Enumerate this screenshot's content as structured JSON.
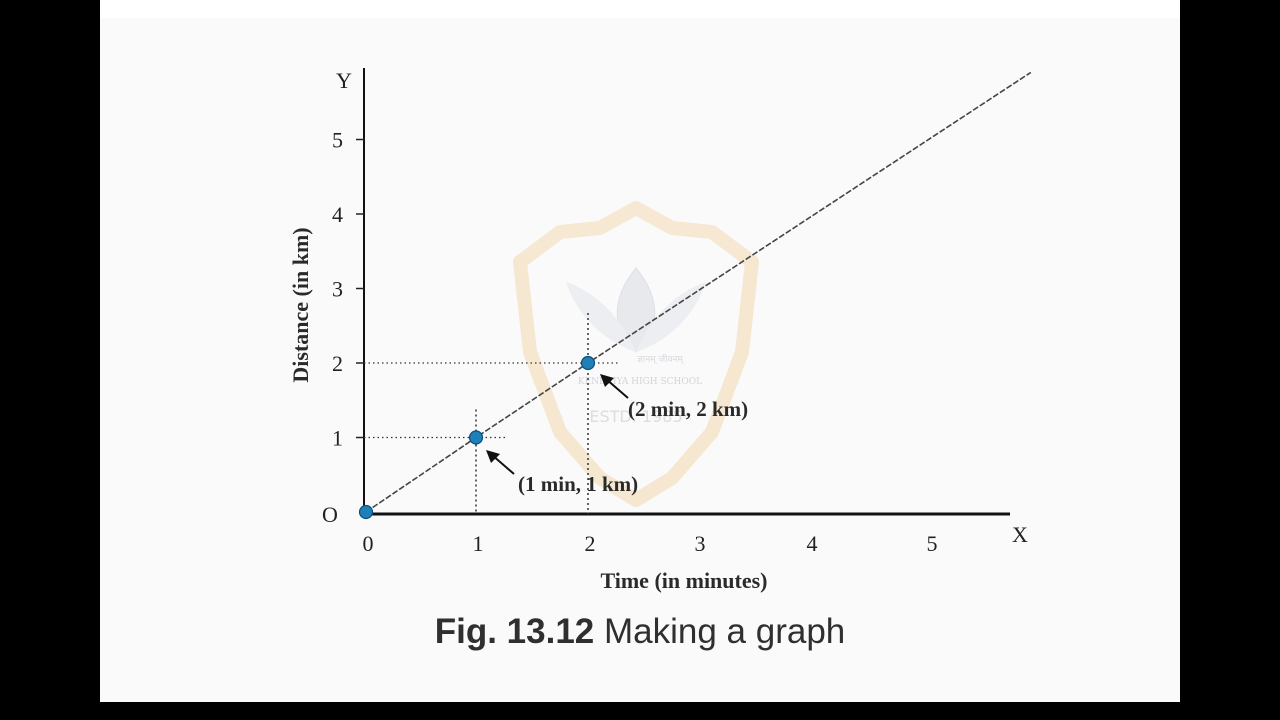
{
  "chart_data": {
    "type": "line",
    "title": "",
    "xlabel": "Time (in minutes)",
    "ylabel": "Distance (in km)",
    "x_axis_letter": "X",
    "y_axis_letter": "Y",
    "origin_label": "O",
    "x_ticks": [
      "0",
      "1",
      "2",
      "3",
      "4",
      "5"
    ],
    "y_ticks": [
      "1",
      "2",
      "3",
      "4",
      "5"
    ],
    "xlim": [
      0,
      5.7
    ],
    "ylim": [
      0,
      5.8
    ],
    "series": [
      {
        "x": [
          0,
          1,
          2,
          5.9
        ],
        "y": [
          0,
          1,
          2,
          5.9
        ]
      }
    ],
    "points": [
      {
        "x": 0,
        "y": 0
      },
      {
        "x": 1,
        "y": 1
      },
      {
        "x": 2,
        "y": 2
      }
    ],
    "annotations": [
      {
        "text": "(1 min, 1 km)",
        "x": 1,
        "y": 1
      },
      {
        "text": "(2 min, 2 km)",
        "x": 2,
        "y": 2
      }
    ],
    "marker_color": "#1f7fb8",
    "line_color": "#444444"
  },
  "caption": {
    "figure_number": "Fig. 13.12",
    "text": "Making a graph"
  },
  "watermark": {
    "text_top": "ज्ञानम् जीवनम्",
    "text_middle": "KENDRIYA HIGH SCHOOL",
    "text_bottom": "ESTD. 1985"
  }
}
